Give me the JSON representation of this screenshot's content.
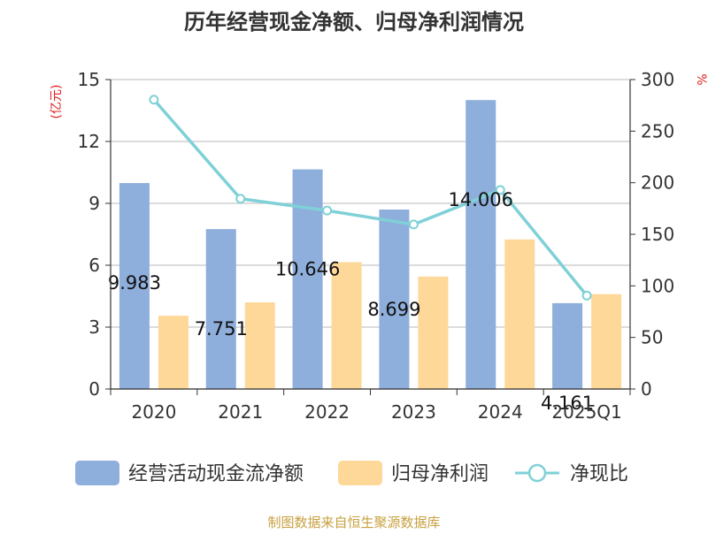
{
  "chart_data": {
    "type": "bar",
    "title": "历年经营现金净额、归母净利润情况",
    "categories": [
      "2020",
      "2021",
      "2022",
      "2023",
      "2024",
      "2025Q1"
    ],
    "series": [
      {
        "name": "经营活动现金流净额",
        "type": "bar",
        "axis": "left",
        "color": "#8eaedb",
        "values": [
          9.983,
          7.751,
          10.646,
          8.699,
          14.006,
          4.161
        ],
        "labels": [
          "9.983",
          "7.751",
          "10.646",
          "8.699",
          "14.006",
          "4.161"
        ]
      },
      {
        "name": "归母净利润",
        "type": "bar",
        "axis": "left",
        "color": "#fdd899",
        "values": [
          3.55,
          4.2,
          6.15,
          5.45,
          7.25,
          4.6
        ]
      },
      {
        "name": "净现比",
        "type": "line",
        "axis": "right",
        "color": "#7fd1d7",
        "values": [
          280.5,
          184.5,
          173,
          159.5,
          193,
          90.5
        ]
      }
    ],
    "ylabel_left": "(亿元)",
    "ylabel_right": "%",
    "ylim_left": [
      0,
      15
    ],
    "yticks_left": [
      0,
      3,
      6,
      9,
      12,
      15
    ],
    "ylim_right": [
      0,
      300
    ],
    "yticks_right": [
      0,
      50,
      100,
      150,
      200,
      250,
      300
    ],
    "grid": true,
    "legend_position": "bottom",
    "source": "制图数据来自恒生聚源数据库",
    "colors": {
      "title": "#333333",
      "axis_label": "#e02020",
      "source": "#c8a040",
      "grid": "#c8c8c8"
    }
  }
}
